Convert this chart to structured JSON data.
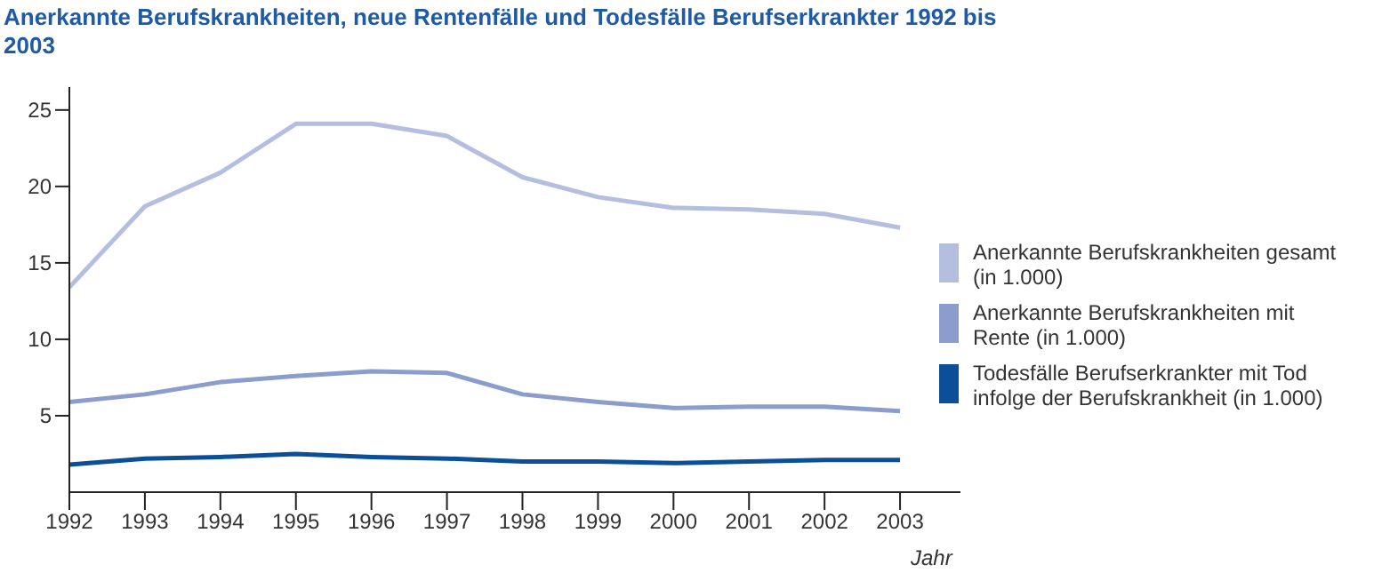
{
  "chart_data": {
    "type": "line",
    "title": "Anerkannte Berufskrankheiten, neue Rentenfälle und Todesfälle Berufserkrankter 1992 bis 2003",
    "xlabel": "Jahr",
    "x": [
      1992,
      1993,
      1994,
      1995,
      1996,
      1997,
      1998,
      1999,
      2000,
      2001,
      2002,
      2003
    ],
    "series": [
      {
        "name": "Anerkannte Berufskrankheiten gesamt (in 1.000)",
        "color": "#b4bfe0",
        "values": [
          13.4,
          18.7,
          20.9,
          24.1,
          24.1,
          23.3,
          20.6,
          19.3,
          18.6,
          18.5,
          18.2,
          17.3
        ]
      },
      {
        "name": "Anerkannte Berufskrankheiten mit Rente (in 1.000)",
        "color": "#8a9dcc",
        "values": [
          5.9,
          6.4,
          7.2,
          7.6,
          7.9,
          7.8,
          6.4,
          5.9,
          5.5,
          5.6,
          5.6,
          5.3
        ]
      },
      {
        "name": "Todesfälle Berufserkrankter mit Tod infolge der Berufskrankheit (in 1.000)",
        "color": "#0b4f98",
        "values": [
          1.8,
          2.2,
          2.3,
          2.5,
          2.3,
          2.2,
          2.0,
          2.0,
          1.9,
          2.0,
          2.1,
          2.1
        ]
      }
    ],
    "xlim": [
      1992,
      2003.8
    ],
    "xticks": [
      1992,
      1993,
      1994,
      1995,
      1996,
      1997,
      1998,
      1999,
      2000,
      2001,
      2002,
      2003
    ],
    "ylim": [
      0,
      26.5
    ],
    "yticks": [
      5,
      10,
      15,
      20,
      25
    ],
    "grid": false,
    "legend": "right",
    "marker": "none",
    "line_style": "solid"
  }
}
